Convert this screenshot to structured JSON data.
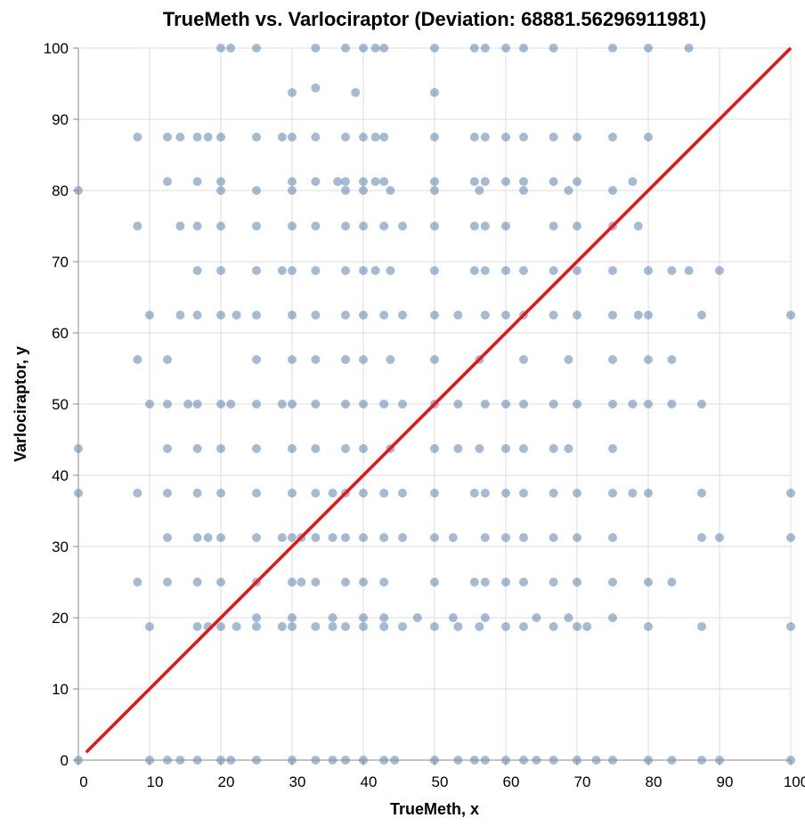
{
  "chart_data": {
    "type": "scatter",
    "title": "TrueMeth vs. Varlociraptor (Deviation: 68881.56296911981)",
    "x_label": "TrueMeth, x",
    "y_label": "Varlociraptor, y",
    "xlim": [
      0,
      100
    ],
    "ylim": [
      0,
      100
    ],
    "xticks": [
      0,
      10,
      20,
      30,
      40,
      50,
      60,
      70,
      80,
      90,
      100
    ],
    "yticks": [
      0,
      10,
      20,
      30,
      40,
      50,
      60,
      70,
      80,
      90,
      100
    ],
    "grid": true,
    "series": [
      {
        "type": "scatter",
        "color": "#4c78a8",
        "opacity": 0.5,
        "x": [
          20,
          21.4,
          25,
          33.3,
          37.5,
          40,
          41.7,
          42.9,
          50,
          55.6,
          57.1,
          60,
          62.5,
          66.7,
          75,
          80,
          85.7,
          30,
          33.3,
          38.9,
          50,
          8.3,
          12.5,
          14.3,
          16.7,
          18.2,
          20,
          25,
          28.6,
          30,
          33.3,
          37.5,
          40,
          41.7,
          42.9,
          50,
          55.6,
          57.1,
          60,
          62.5,
          66.7,
          70,
          75,
          80,
          12.5,
          16.7,
          20,
          30,
          33.3,
          36.4,
          37.5,
          40,
          41.7,
          42.9,
          50,
          55.6,
          57.1,
          60,
          62.5,
          66.7,
          70,
          77.8,
          0,
          20,
          25,
          30,
          37.5,
          40,
          43.8,
          50,
          56.3,
          62.5,
          68.8,
          75,
          8.3,
          14.3,
          16.7,
          20,
          25,
          30,
          33.3,
          37.5,
          40,
          42.9,
          45.5,
          50,
          55.6,
          57.1,
          60,
          66.7,
          70,
          75,
          78.6,
          16.7,
          20,
          25,
          28.6,
          30,
          33.3,
          37.5,
          40,
          41.7,
          43.8,
          50,
          55.6,
          57.1,
          60,
          62.5,
          66.7,
          70,
          75,
          80,
          83.3,
          85.7,
          90,
          10,
          14.3,
          16.7,
          20,
          22.2,
          25,
          30,
          33.3,
          37.5,
          40,
          42.9,
          45.5,
          50,
          53.3,
          57.1,
          60,
          62.5,
          66.7,
          70,
          75,
          78.6,
          80,
          87.5,
          100,
          8.3,
          12.5,
          25,
          30,
          33.3,
          37.5,
          40,
          43.8,
          50,
          56.3,
          62.5,
          68.8,
          75,
          80,
          83.3,
          10,
          12.5,
          15.4,
          16.7,
          20,
          21.4,
          25,
          28.6,
          30,
          33.3,
          37.5,
          40,
          42.9,
          45.5,
          50,
          53.3,
          57.1,
          60,
          62.5,
          66.7,
          70,
          75,
          77.8,
          80,
          83.3,
          87.5,
          0,
          12.5,
          16.7,
          20,
          25,
          30,
          33.3,
          37.5,
          40,
          43.8,
          50,
          53.3,
          56.3,
          60,
          62.5,
          66.7,
          68.8,
          75,
          0,
          8.3,
          12.5,
          16.7,
          20,
          25,
          30,
          33.3,
          35.7,
          37.5,
          40,
          42.9,
          45.5,
          50,
          55.6,
          57.1,
          60,
          62.5,
          66.7,
          70,
          75,
          77.8,
          80,
          87.5,
          100,
          12.5,
          16.7,
          18.2,
          20,
          25,
          28.6,
          30,
          31.3,
          33.3,
          35.7,
          37.5,
          40,
          42.9,
          45.5,
          50,
          52.6,
          57.1,
          60,
          62.5,
          66.7,
          70,
          75,
          87.5,
          90,
          100,
          8.3,
          12.5,
          16.7,
          20,
          25,
          30,
          31.3,
          33.3,
          37.5,
          40,
          42.9,
          50,
          55.6,
          57.1,
          60,
          62.5,
          66.7,
          70,
          75,
          80,
          83.3,
          10,
          16.7,
          18.2,
          20,
          22.2,
          25,
          28.6,
          30,
          33.3,
          35.7,
          37.5,
          40,
          42.9,
          45.5,
          50,
          53.3,
          56.3,
          60,
          62.5,
          66.7,
          70,
          71.4,
          80,
          87.5,
          100,
          25,
          30,
          35.7,
          40,
          42.9,
          47.6,
          52.6,
          57.1,
          64.3,
          68.8,
          75,
          0,
          10,
          12.5,
          14.3,
          16.7,
          20,
          21.4,
          25,
          30,
          33.3,
          35.7,
          37.5,
          40,
          42.9,
          44.4,
          50,
          53.3,
          55.6,
          57.1,
          60,
          62.5,
          64.3,
          66.7,
          70,
          72.7,
          75,
          80,
          83.3,
          87.5,
          90,
          100
        ],
        "values": [
          100,
          100,
          100,
          100,
          100,
          100,
          100,
          100,
          100,
          100,
          100,
          100,
          100,
          100,
          100,
          100,
          100,
          93.75,
          94.4,
          93.75,
          93.75,
          87.5,
          87.5,
          87.5,
          87.5,
          87.5,
          87.5,
          87.5,
          87.5,
          87.5,
          87.5,
          87.5,
          87.5,
          87.5,
          87.5,
          87.5,
          87.5,
          87.5,
          87.5,
          87.5,
          87.5,
          87.5,
          87.5,
          87.5,
          81.25,
          81.25,
          81.25,
          81.25,
          81.25,
          81.25,
          81.25,
          81.25,
          81.25,
          81.25,
          81.25,
          81.25,
          81.25,
          81.25,
          81.25,
          81.25,
          81.25,
          81.25,
          80,
          80,
          80,
          80,
          80,
          80,
          80,
          80,
          80,
          80,
          80,
          80,
          75,
          75,
          75,
          75,
          75,
          75,
          75,
          75,
          75,
          75,
          75,
          75,
          75,
          75,
          75,
          75,
          75,
          75,
          75,
          68.75,
          68.75,
          68.75,
          68.75,
          68.75,
          68.75,
          68.75,
          68.75,
          68.75,
          68.75,
          68.75,
          68.75,
          68.75,
          68.75,
          68.75,
          68.75,
          68.75,
          68.75,
          68.75,
          68.75,
          68.75,
          68.75,
          62.5,
          62.5,
          62.5,
          62.5,
          62.5,
          62.5,
          62.5,
          62.5,
          62.5,
          62.5,
          62.5,
          62.5,
          62.5,
          62.5,
          62.5,
          62.5,
          62.5,
          62.5,
          62.5,
          62.5,
          62.5,
          62.5,
          62.5,
          62.5,
          56.25,
          56.25,
          56.25,
          56.25,
          56.25,
          56.25,
          56.25,
          56.25,
          56.25,
          56.25,
          56.25,
          56.25,
          56.25,
          56.25,
          56.25,
          50,
          50,
          50,
          50,
          50,
          50,
          50,
          50,
          50,
          50,
          50,
          50,
          50,
          50,
          50,
          50,
          50,
          50,
          50,
          50,
          50,
          50,
          50,
          50,
          50,
          50,
          43.75,
          43.75,
          43.75,
          43.75,
          43.75,
          43.75,
          43.75,
          43.75,
          43.75,
          43.75,
          43.75,
          43.75,
          43.75,
          43.75,
          43.75,
          43.75,
          43.75,
          43.75,
          37.5,
          37.5,
          37.5,
          37.5,
          37.5,
          37.5,
          37.5,
          37.5,
          37.5,
          37.5,
          37.5,
          37.5,
          37.5,
          37.5,
          37.5,
          37.5,
          37.5,
          37.5,
          37.5,
          37.5,
          37.5,
          37.5,
          37.5,
          37.5,
          37.5,
          31.25,
          31.25,
          31.25,
          31.25,
          31.25,
          31.25,
          31.25,
          31.25,
          31.25,
          31.25,
          31.25,
          31.25,
          31.25,
          31.25,
          31.25,
          31.25,
          31.25,
          31.25,
          31.25,
          31.25,
          31.25,
          31.25,
          31.25,
          31.25,
          31.25,
          25,
          25,
          25,
          25,
          25,
          25,
          25,
          25,
          25,
          25,
          25,
          25,
          25,
          25,
          25,
          25,
          25,
          25,
          25,
          25,
          25,
          18.75,
          18.75,
          18.75,
          18.75,
          18.75,
          18.75,
          18.75,
          18.75,
          18.75,
          18.75,
          18.75,
          18.75,
          18.75,
          18.75,
          18.75,
          18.75,
          18.75,
          18.75,
          18.75,
          18.75,
          18.75,
          18.75,
          18.75,
          18.75,
          18.75,
          20,
          20,
          20,
          20,
          20,
          20,
          20,
          20,
          20,
          20,
          20,
          0,
          0,
          0,
          0,
          0,
          0,
          0,
          0,
          0,
          0,
          0,
          0,
          0,
          0,
          0,
          0,
          0,
          0,
          0,
          0,
          0,
          0,
          0,
          0,
          0,
          0,
          0,
          0,
          0,
          0,
          0
        ]
      },
      {
        "type": "line",
        "color": "#ee1111",
        "x": [
          1.1,
          100
        ],
        "values": [
          1.1,
          100
        ]
      }
    ]
  }
}
